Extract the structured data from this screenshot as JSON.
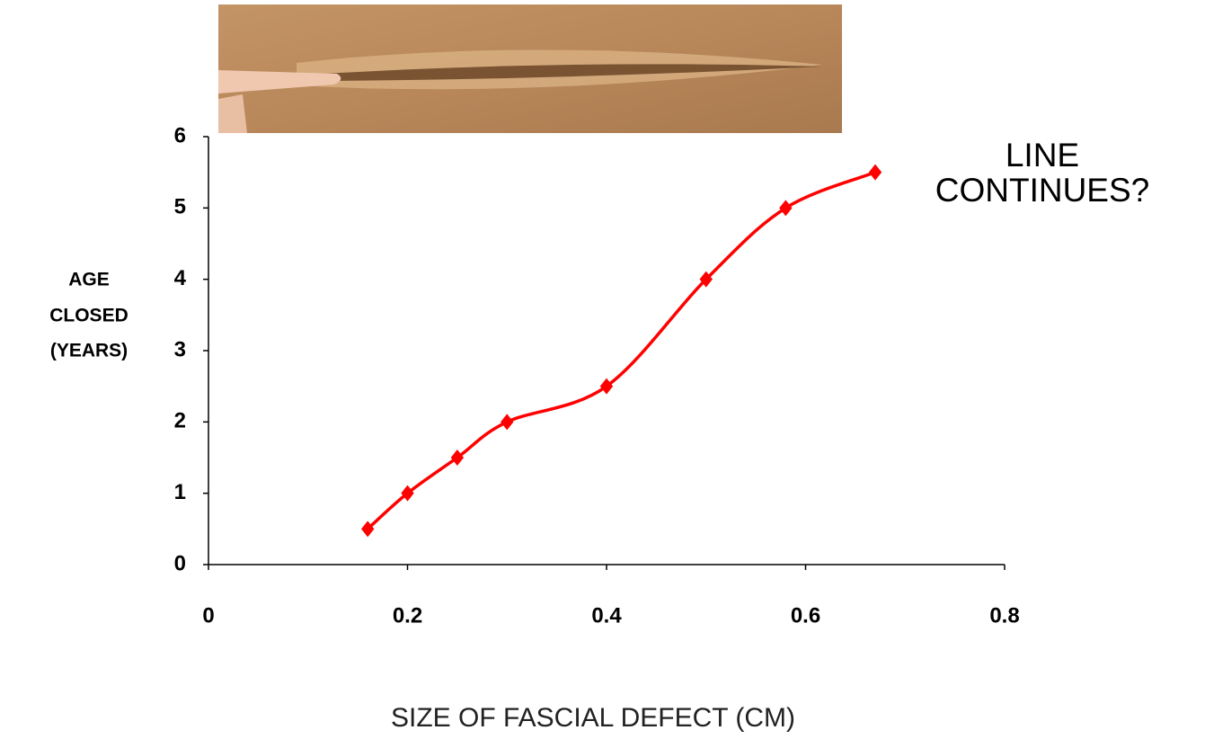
{
  "chart_data": {
    "type": "line",
    "x_label": "SIZE OF FASCIAL DEFECT (CM)",
    "y_label": [
      "AGE",
      "CLOSED",
      "(YEARS)"
    ],
    "annotation": [
      "LINE",
      "CONTINUES?"
    ],
    "x": [
      0.16,
      0.2,
      0.25,
      0.3,
      0.4,
      0.5,
      0.58,
      0.67
    ],
    "series": [
      {
        "color": "#ff0000",
        "values": [
          0.5,
          1,
          1.5,
          2,
          2.5,
          4,
          5,
          5.5
        ]
      }
    ],
    "xlim": [
      0,
      0.8
    ],
    "xticks": [
      0,
      0.2,
      0.4,
      0.6,
      0.8
    ],
    "ylim": [
      0,
      6
    ],
    "yticks": [
      0,
      1,
      2,
      3,
      4,
      5,
      6
    ],
    "smooth": true,
    "marker": "diamond"
  }
}
